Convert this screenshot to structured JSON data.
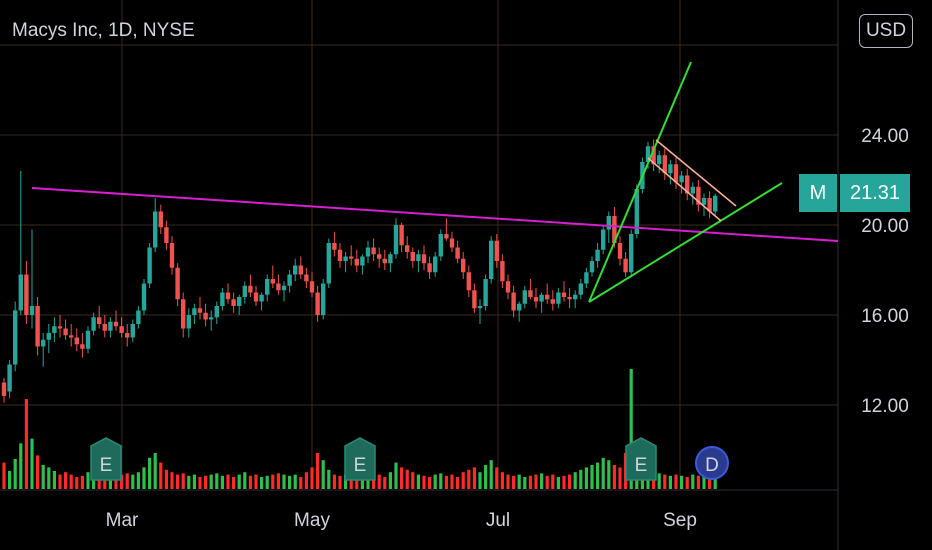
{
  "header": {
    "symbol_title": "Macys Inc, 1D, NYSE",
    "currency_button": "USD"
  },
  "last_price": {
    "symbol": "M",
    "value": "21.31",
    "price": 21.31
  },
  "colors": {
    "up": "#26a69a",
    "down": "#ef5350",
    "volume_up": "#2fbf4e",
    "volume_down": "#ff2a2a",
    "trendline": "#d61fd1",
    "pennant": "#33dd33",
    "flag": "#ffb199",
    "grid": "#3a2a1a",
    "event_marker": "#1e6b5c",
    "dividend_marker": "#2a3b8f"
  },
  "chart_data": {
    "type": "candlestick",
    "title": "Macys Inc, 1D, NYSE",
    "y_axis": {
      "ticks": [
        12,
        16,
        20,
        24
      ],
      "tick_labels": [
        "12.00",
        "16.00",
        "20.00",
        "24.00"
      ]
    },
    "x_axis": {
      "labels": [
        "Mar",
        "May",
        "Jul",
        "Sep"
      ]
    },
    "events": [
      {
        "label": "E",
        "type": "earnings"
      },
      {
        "label": "E",
        "type": "earnings"
      },
      {
        "label": "E",
        "type": "earnings"
      },
      {
        "label": "D",
        "type": "dividend"
      }
    ],
    "trendlines": [
      {
        "color": "purple",
        "from": 21.9,
        "to": 19.3
      },
      {
        "color": "green",
        "from": 16.4,
        "to": 27.3
      },
      {
        "color": "green",
        "from": 16.4,
        "to": 22.0
      },
      {
        "color": "salmon",
        "from": 23.8,
        "to": 20.9
      },
      {
        "color": "salmon",
        "from": 23.0,
        "to": 20.0
      }
    ],
    "series": [
      {
        "name": "price",
        "ohlc_path": [
          [
            13.0,
            13.2,
            12.1,
            12.4
          ],
          [
            12.6,
            14.0,
            12.3,
            13.8
          ],
          [
            13.8,
            16.6,
            13.5,
            16.2
          ],
          [
            16.2,
            22.4,
            16.0,
            17.8
          ],
          [
            17.8,
            18.4,
            15.6,
            16.0
          ],
          [
            16.0,
            19.8,
            15.4,
            16.4
          ],
          [
            16.4,
            16.8,
            14.2,
            14.6
          ],
          [
            14.6,
            15.2,
            13.7,
            14.9
          ],
          [
            14.9,
            15.6,
            14.3,
            15.2
          ],
          [
            15.2,
            15.9,
            14.8,
            15.5
          ],
          [
            15.5,
            16.0,
            15.0,
            15.4
          ],
          [
            15.4,
            15.8,
            14.9,
            15.1
          ],
          [
            15.1,
            15.6,
            14.6,
            15.0
          ],
          [
            15.0,
            15.4,
            14.4,
            14.7
          ],
          [
            14.7,
            15.2,
            14.1,
            14.5
          ],
          [
            14.5,
            15.5,
            14.3,
            15.3
          ],
          [
            15.3,
            16.1,
            15.1,
            15.9
          ],
          [
            15.9,
            16.4,
            15.4,
            15.6
          ],
          [
            15.6,
            16.0,
            15.0,
            15.3
          ],
          [
            15.3,
            15.9,
            15.0,
            15.7
          ],
          [
            15.7,
            16.2,
            15.3,
            15.5
          ],
          [
            15.5,
            15.9,
            15.0,
            15.2
          ],
          [
            15.2,
            15.6,
            14.6,
            15.0
          ],
          [
            15.0,
            15.8,
            14.8,
            15.6
          ],
          [
            15.6,
            16.4,
            15.4,
            16.2
          ],
          [
            16.2,
            17.6,
            16.0,
            17.4
          ],
          [
            17.4,
            19.2,
            17.2,
            19.0
          ],
          [
            19.0,
            21.2,
            18.8,
            20.6
          ],
          [
            20.6,
            20.9,
            19.6,
            19.9
          ],
          [
            19.9,
            20.2,
            18.9,
            19.2
          ],
          [
            19.2,
            19.5,
            17.8,
            18.1
          ],
          [
            18.1,
            18.3,
            16.4,
            16.7
          ],
          [
            16.7,
            17.0,
            15.0,
            15.4
          ],
          [
            15.4,
            16.3,
            15.0,
            16.0
          ],
          [
            16.0,
            16.5,
            15.6,
            16.3
          ],
          [
            16.3,
            16.8,
            15.8,
            16.1
          ],
          [
            16.1,
            16.5,
            15.5,
            15.8
          ],
          [
            15.8,
            16.2,
            15.3,
            15.9
          ],
          [
            15.9,
            16.6,
            15.6,
            16.4
          ],
          [
            16.4,
            17.2,
            16.2,
            17.0
          ],
          [
            17.0,
            17.4,
            16.5,
            16.7
          ],
          [
            16.7,
            17.0,
            16.1,
            16.4
          ],
          [
            16.4,
            16.9,
            16.0,
            16.8
          ],
          [
            16.8,
            17.5,
            16.5,
            17.3
          ],
          [
            17.3,
            17.8,
            16.8,
            17.0
          ],
          [
            17.0,
            17.3,
            16.4,
            16.6
          ],
          [
            16.6,
            17.0,
            16.2,
            16.9
          ],
          [
            16.9,
            17.8,
            16.6,
            17.6
          ],
          [
            17.6,
            18.2,
            17.2,
            17.4
          ],
          [
            17.4,
            17.8,
            16.9,
            17.1
          ],
          [
            17.1,
            17.5,
            16.6,
            17.3
          ],
          [
            17.3,
            18.0,
            17.0,
            17.8
          ],
          [
            17.8,
            18.5,
            17.5,
            18.2
          ],
          [
            18.2,
            18.6,
            17.6,
            17.8
          ],
          [
            17.8,
            18.1,
            17.2,
            17.5
          ],
          [
            17.5,
            17.9,
            16.8,
            17.0
          ],
          [
            17.0,
            17.3,
            15.7,
            16.0
          ],
          [
            16.0,
            17.6,
            15.8,
            17.4
          ],
          [
            17.4,
            19.4,
            17.2,
            19.2
          ],
          [
            19.2,
            19.7,
            18.6,
            18.9
          ],
          [
            18.9,
            19.2,
            18.1,
            18.4
          ],
          [
            18.4,
            18.8,
            17.9,
            18.6
          ],
          [
            18.6,
            19.1,
            18.2,
            18.5
          ],
          [
            18.5,
            18.9,
            17.9,
            18.2
          ],
          [
            18.2,
            18.7,
            17.8,
            18.6
          ],
          [
            18.6,
            19.3,
            18.3,
            19.0
          ],
          [
            19.0,
            19.4,
            18.4,
            18.7
          ],
          [
            18.7,
            19.0,
            18.1,
            18.5
          ],
          [
            18.5,
            18.9,
            18.0,
            18.3
          ],
          [
            18.3,
            18.8,
            17.9,
            18.7
          ],
          [
            18.7,
            20.3,
            18.5,
            20.0
          ],
          [
            20.0,
            20.1,
            18.8,
            19.1
          ],
          [
            19.1,
            19.5,
            18.5,
            18.8
          ],
          [
            18.8,
            19.0,
            18.1,
            18.4
          ],
          [
            18.4,
            18.9,
            17.9,
            18.7
          ],
          [
            18.7,
            19.1,
            18.0,
            18.3
          ],
          [
            18.3,
            18.6,
            17.6,
            17.9
          ],
          [
            17.9,
            18.8,
            17.7,
            18.6
          ],
          [
            18.6,
            19.8,
            18.4,
            19.6
          ],
          [
            19.6,
            20.3,
            19.3,
            19.4
          ],
          [
            19.4,
            19.7,
            18.8,
            19.0
          ],
          [
            19.0,
            19.3,
            18.3,
            18.5
          ],
          [
            18.5,
            18.8,
            17.6,
            17.9
          ],
          [
            17.9,
            18.2,
            16.8,
            17.1
          ],
          [
            17.1,
            17.4,
            16.1,
            16.3
          ],
          [
            16.3,
            16.7,
            15.6,
            16.4
          ],
          [
            16.4,
            17.8,
            16.2,
            17.6
          ],
          [
            17.6,
            19.5,
            17.4,
            19.3
          ],
          [
            19.3,
            19.6,
            18.1,
            18.4
          ],
          [
            18.4,
            18.7,
            17.2,
            17.5
          ],
          [
            17.5,
            17.8,
            16.7,
            17.0
          ],
          [
            17.0,
            17.3,
            15.9,
            16.2
          ],
          [
            16.2,
            16.6,
            15.7,
            16.5
          ],
          [
            16.5,
            17.3,
            16.3,
            17.1
          ],
          [
            17.1,
            17.6,
            16.7,
            16.8
          ],
          [
            16.8,
            17.2,
            16.3,
            16.6
          ],
          [
            16.6,
            17.0,
            16.1,
            16.9
          ],
          [
            16.9,
            17.4,
            16.5,
            16.7
          ],
          [
            16.7,
            17.1,
            16.2,
            16.5
          ],
          [
            16.5,
            17.2,
            16.3,
            17.0
          ],
          [
            17.0,
            17.5,
            16.6,
            16.8
          ],
          [
            16.8,
            17.2,
            16.3,
            16.7
          ],
          [
            16.7,
            17.1,
            16.3,
            16.9
          ],
          [
            16.9,
            17.6,
            16.7,
            17.4
          ],
          [
            17.4,
            18.1,
            17.2,
            17.9
          ],
          [
            17.9,
            18.6,
            17.7,
            18.4
          ],
          [
            18.4,
            19.2,
            18.1,
            18.9
          ],
          [
            18.9,
            20.0,
            18.7,
            19.8
          ],
          [
            19.8,
            20.6,
            19.2,
            20.4
          ],
          [
            20.4,
            20.8,
            19.0,
            19.2
          ],
          [
            19.2,
            19.5,
            18.2,
            18.5
          ],
          [
            18.5,
            18.8,
            17.7,
            17.9
          ],
          [
            17.9,
            19.8,
            17.7,
            19.6
          ],
          [
            19.6,
            21.8,
            19.4,
            21.6
          ],
          [
            21.6,
            23.0,
            21.4,
            22.8
          ],
          [
            22.8,
            23.7,
            22.5,
            23.5
          ],
          [
            23.5,
            23.8,
            22.4,
            22.7
          ],
          [
            22.7,
            23.3,
            22.3,
            23.1
          ],
          [
            23.1,
            23.4,
            22.0,
            22.3
          ],
          [
            22.3,
            22.9,
            21.8,
            22.7
          ],
          [
            22.7,
            23.0,
            21.6,
            21.9
          ],
          [
            21.9,
            22.4,
            21.4,
            22.2
          ],
          [
            22.2,
            22.5,
            21.1,
            21.4
          ],
          [
            21.4,
            21.9,
            20.9,
            21.7
          ],
          [
            21.7,
            22.0,
            20.6,
            20.9
          ],
          [
            20.9,
            21.4,
            20.4,
            21.2
          ],
          [
            21.2,
            21.5,
            20.3,
            20.6
          ],
          [
            20.6,
            21.4,
            20.4,
            21.3
          ]
        ]
      },
      {
        "name": "volume",
        "values": [
          22,
          15,
          25,
          38,
          75,
          42,
          28,
          20,
          18,
          15,
          12,
          14,
          12,
          10,
          11,
          14,
          12,
          16,
          11,
          12,
          14,
          12,
          13,
          12,
          14,
          18,
          26,
          30,
          22,
          16,
          14,
          12,
          13,
          11,
          12,
          10,
          11,
          12,
          13,
          11,
          12,
          10,
          12,
          14,
          11,
          12,
          10,
          11,
          12,
          13,
          12,
          11,
          12,
          10,
          14,
          18,
          30,
          24,
          16,
          12,
          11,
          12,
          10,
          11,
          12,
          13,
          11,
          12,
          10,
          14,
          22,
          18,
          16,
          14,
          12,
          11,
          10,
          12,
          13,
          11,
          12,
          10,
          14,
          16,
          18,
          14,
          20,
          24,
          18,
          14,
          12,
          11,
          12,
          10,
          11,
          12,
          13,
          11,
          12,
          10,
          11,
          12,
          14,
          16,
          18,
          20,
          22,
          26,
          24,
          20,
          18,
          30,
          100,
          22,
          20,
          16,
          14,
          13,
          12,
          11,
          12,
          11,
          10,
          12,
          11,
          10,
          11,
          10
        ]
      }
    ]
  }
}
